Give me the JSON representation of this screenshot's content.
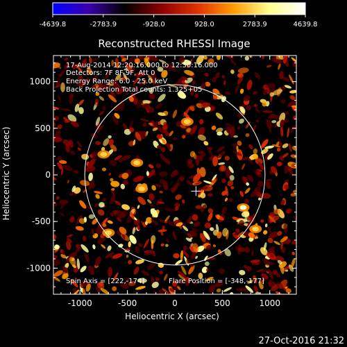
{
  "colorbar": {
    "ticks": [
      -4639.8,
      -2783.9,
      -928.0,
      928.0,
      2783.9,
      4639.8
    ],
    "tick_labels": [
      "-4639.8",
      "-2783.9",
      "-928.0",
      "928.0",
      "2783.9",
      "4639.8"
    ],
    "range": [
      -4639.8,
      4639.8
    ],
    "colors": [
      "#0000ff",
      "#3a00aa",
      "#000000",
      "#8a0000",
      "#e03000",
      "#ff9a00",
      "#ffff90",
      "#ffffff"
    ]
  },
  "chart_data": {
    "type": "heatmap",
    "title": "Reconstructed RHESSI Image",
    "xlabel": "Heliocentric X (arcsec)",
    "ylabel": "Heliocentric Y (arcsec)",
    "xlim": [
      -1280,
      1280
    ],
    "ylim": [
      -1280,
      1280
    ],
    "x_ticks": [
      -1000,
      -500,
      0,
      500,
      1000
    ],
    "y_ticks": [
      -1000,
      -500,
      0,
      500,
      1000
    ],
    "x_tick_labels": [
      "-1000",
      "-500",
      "0",
      "500",
      "1000"
    ],
    "y_tick_labels": [
      "-1000",
      "-500",
      "0",
      "500",
      "1000"
    ],
    "solar_disk": {
      "center": [
        0,
        0
      ],
      "radius": 950
    },
    "spin_axis_marker": [
      222,
      -174
    ],
    "annotations": [
      "17-Aug-2014 12:20:16.000 to 12:30:16.000",
      "Detectors: 7F 8F 9F, Att 0",
      "Energy Range: 6.0 - 25.0 keV",
      "Back Projection   Total counts: 1.325+05"
    ],
    "footer_annotations": {
      "spin_axis": "Spin Axis = [222,-174]",
      "flare_position": "Flare Position = [-348,-177]"
    },
    "bright_sources": [
      {
        "x": 720,
        "y": -350,
        "intensity": 0.95
      },
      {
        "x": 130,
        "y": 570,
        "intensity": 0.85
      },
      {
        "x": -400,
        "y": 130,
        "intensity": 0.8
      },
      {
        "x": -750,
        "y": 220,
        "intensity": 0.75
      },
      {
        "x": -350,
        "y": -150,
        "intensity": 0.8
      },
      {
        "x": -700,
        "y": -620,
        "intensity": 0.75
      },
      {
        "x": 850,
        "y": -580,
        "intensity": 0.75
      }
    ]
  },
  "timestamp": "27-Oct-2016 21:32"
}
